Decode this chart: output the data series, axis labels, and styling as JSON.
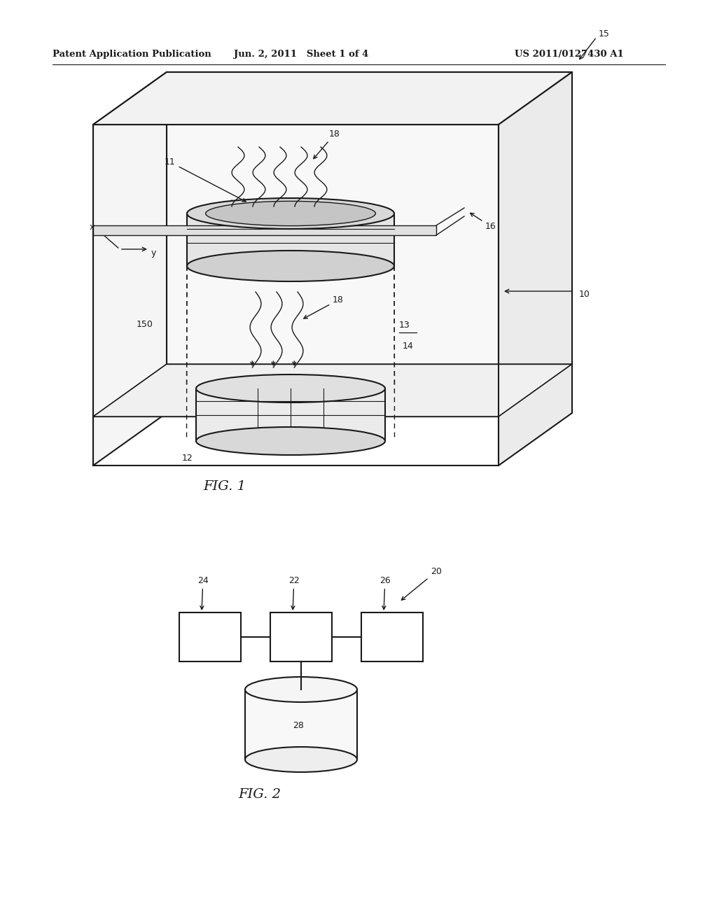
{
  "header_left": "Patent Application Publication",
  "header_mid": "Jun. 2, 2011   Sheet 1 of 4",
  "header_right": "US 2011/0127430 A1",
  "fig1_caption": "FIG. 1",
  "fig2_caption": "FIG. 2",
  "bg_color": "#ffffff",
  "line_color": "#1a1a1a"
}
